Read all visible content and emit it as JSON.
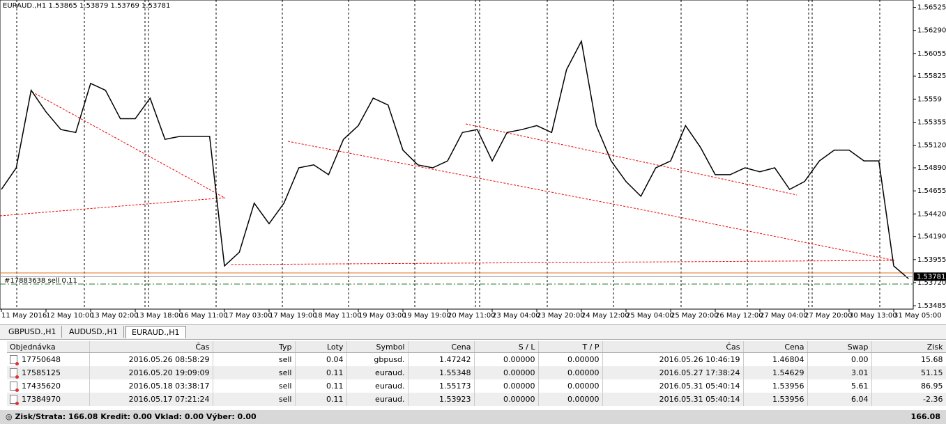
{
  "chart_data": {
    "type": "line",
    "title": "EURAUD.,H1  1.53865 1.53879 1.53769 1.53781",
    "color": "#000000",
    "x": [
      "11 May 2016",
      null,
      null,
      "12 May 10:00",
      null,
      null,
      "13 May 02:00",
      null,
      null,
      "13 May 18:00",
      null,
      null,
      "16 May 11:00",
      null,
      null,
      "17 May 03:00",
      null,
      null,
      "17 May 19:00",
      null,
      null,
      "18 May 11:00",
      null,
      null,
      "19 May 03:00",
      null,
      null,
      "19 May 19:00",
      null,
      null,
      "20 May 11:00",
      null,
      null,
      "23 May 04:00",
      null,
      null,
      "23 May 20:00",
      null,
      null,
      "24 May 12:00",
      null,
      null,
      "25 May 04:00",
      null,
      null,
      "25 May 20:00",
      null,
      null,
      "26 May 12:00",
      null,
      null,
      "27 May 04:00",
      null,
      null,
      "27 May 20:00",
      null,
      null,
      "30 May 13:00",
      null,
      null,
      "31 May 05:00",
      null
    ],
    "values": [
      1.5467,
      1.5489,
      1.5568,
      1.5546,
      1.5528,
      1.5525,
      1.5575,
      1.5568,
      1.5539,
      1.5539,
      1.556,
      1.5518,
      1.5521,
      1.5521,
      1.5521,
      1.5389,
      1.5403,
      1.5453,
      1.5432,
      1.5453,
      1.5489,
      1.5492,
      1.5482,
      1.5518,
      1.5532,
      1.556,
      1.5553,
      1.5507,
      1.5492,
      1.5489,
      1.5496,
      1.5525,
      1.5528,
      1.5496,
      1.5525,
      1.5528,
      1.5532,
      1.5525,
      1.5589,
      1.5618,
      1.5532,
      1.5496,
      1.5475,
      1.546,
      1.5489,
      1.5496,
      1.5532,
      1.551,
      1.5482,
      1.5482,
      1.5489,
      1.5485,
      1.5489,
      1.5467,
      1.5475,
      1.5496,
      1.5507,
      1.5507,
      1.5496,
      1.5496,
      1.5389,
      1.5376
    ],
    "ylim": [
      1.5345,
      1.566
    ],
    "yticks": [
      1.56525,
      {
        "value": 1.5629,
        "label": "1.56290"
      },
      1.56055,
      1.55825,
      1.5559,
      1.55355,
      {
        "value": 1.5512,
        "label": "1.55120"
      },
      {
        "value": 1.5489,
        "label": "1.54890"
      },
      1.54655,
      {
        "value": 1.5442,
        "label": "1.54420"
      },
      {
        "value": 1.5419,
        "label": "1.54190"
      },
      1.53955,
      {
        "value": 1.5372,
        "label": "1.53720"
      },
      1.53485
    ],
    "last_price": 1.53781,
    "order_label": "#17883638 sell 0.11"
  },
  "terminal": {
    "tabs": [
      "GBPUSD.,H1",
      "AUDUSD.,H1",
      "EURAUD.,H1"
    ],
    "table": {
      "headers": [
        "Objednávka",
        "Čas",
        "Typ",
        "Loty",
        "Symbol",
        "Cena",
        "S / L",
        "T / P",
        "Čas",
        "Cena",
        "Swap",
        "Zisk"
      ],
      "rows": [
        [
          "17750648",
          "2016.05.26 08:58:29",
          "sell",
          "0.04",
          "gbpusd.",
          "1.47242",
          "0.00000",
          "0.00000",
          "2016.05.26 10:46:19",
          "1.46804",
          "0.00",
          "15.68"
        ],
        [
          "17585125",
          "2016.05.20 19:09:09",
          "sell",
          "0.11",
          "euraud.",
          "1.55348",
          "0.00000",
          "0.00000",
          "2016.05.27 17:38:24",
          "1.54629",
          "3.01",
          "51.15"
        ],
        [
          "17435620",
          "2016.05.18 03:38:17",
          "sell",
          "0.11",
          "euraud.",
          "1.55173",
          "0.00000",
          "0.00000",
          "2016.05.31 05:40:14",
          "1.53956",
          "5.61",
          "86.95"
        ],
        [
          "17384970",
          "2016.05.17 07:21:24",
          "sell",
          "0.11",
          "euraud.",
          "1.53923",
          "0.00000",
          "0.00000",
          "2016.05.31 05:40:14",
          "1.53956",
          "6.04",
          "-2.36"
        ]
      ]
    },
    "footer": {
      "summary": "Zisk/Strata: 166.08  Kredit: 0.00  Vklad: 0.00  Výber: 0.00",
      "total": "166.08"
    }
  }
}
